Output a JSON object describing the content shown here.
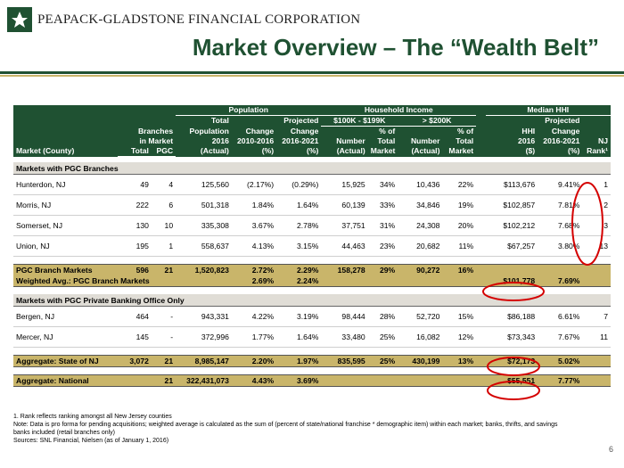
{
  "header": {
    "company": "PEAPACK-GLADSTONE FINANCIAL CORPORATION",
    "title": "Market Overview – The “Wealth Belt”"
  },
  "table": {
    "group_headers": {
      "population": "Population",
      "household_income": "Household Income",
      "median_hhi": "Median HHI"
    },
    "income_bands": {
      "band1": "$100K - $199K",
      "band2": "> $200K"
    },
    "col_heads": {
      "market": "Market (County)",
      "branches1": "Branches",
      "branches2": "in Market",
      "total": "Total",
      "pgc": "PGC",
      "pop_total1": "Total",
      "pop_total2": "Population",
      "pop_total3": "2016",
      "pop_total4": "(Actual)",
      "chg1": "Change",
      "chg2": "2010-2016",
      "chg3": "(%)",
      "proj1": "Projected",
      "proj2": "Change",
      "proj3": "2016-2021",
      "proj4": "(%)",
      "num1": "Number",
      "num2": "(Actual)",
      "pct1": "% of",
      "pct2": "Total",
      "pct3": "Market",
      "num3": "Number",
      "num4": "(Actual)",
      "pct4": "% of",
      "pct5": "Total",
      "pct6": "Market",
      "hhi1": "HHI",
      "hhi2": "2016",
      "hhi3": "($)",
      "hproj1": "Projected",
      "hproj2": "Change",
      "hproj3": "2016-2021",
      "hproj4": "(%)",
      "nj1": "NJ",
      "nj2": "Rank¹"
    },
    "section1": "Markets with PGC Branches",
    "rows1": [
      [
        "Hunterdon, NJ",
        "49",
        "4",
        "125,560",
        "(2.17%)",
        "(0.29%)",
        "15,925",
        "34%",
        "10,436",
        "22%",
        "$113,676",
        "9.41%",
        "1"
      ],
      [
        "Morris, NJ",
        "222",
        "6",
        "501,318",
        "1.84%",
        "1.64%",
        "60,139",
        "33%",
        "34,846",
        "19%",
        "$102,857",
        "7.81%",
        "2"
      ],
      [
        "Somerset, NJ",
        "130",
        "10",
        "335,308",
        "3.67%",
        "2.78%",
        "37,751",
        "31%",
        "24,308",
        "20%",
        "$102,212",
        "7.68%",
        "3"
      ],
      [
        "Union, NJ",
        "195",
        "1",
        "558,637",
        "4.13%",
        "3.15%",
        "44,463",
        "23%",
        "20,682",
        "11%",
        "$67,257",
        "3.80%",
        "13"
      ]
    ],
    "pgc_branch": [
      "PGC Branch Markets",
      "596",
      "21",
      "1,520,823",
      "2.72%",
      "2.29%",
      "158,278",
      "29%",
      "90,272",
      "16%",
      "",
      "",
      ""
    ],
    "weighted": {
      "label": "Weighted Avg.: PGC Branch Markets",
      "chg": "2.69%",
      "proj": "2.24%",
      "hhi": "$101,778",
      "hproj": "7.69%"
    },
    "section2": "Markets with PGC Private Banking Office Only",
    "rows2": [
      [
        "Bergen, NJ",
        "464",
        "-",
        "943,331",
        "4.22%",
        "3.19%",
        "98,444",
        "28%",
        "52,720",
        "15%",
        "$86,188",
        "6.61%",
        "7"
      ],
      [
        "Mercer, NJ",
        "145",
        "-",
        "372,996",
        "1.77%",
        "1.64%",
        "33,480",
        "25%",
        "16,082",
        "12%",
        "$73,343",
        "7.67%",
        "11"
      ]
    ],
    "state": [
      "Aggregate: State of NJ",
      "3,072",
      "21",
      "8,985,147",
      "2.20%",
      "1.97%",
      "835,595",
      "25%",
      "430,199",
      "13%",
      "$72,173",
      "5.02%",
      ""
    ],
    "national": [
      "Aggregate: National",
      "",
      "21",
      "322,431,073",
      "4.43%",
      "3.69%",
      "",
      "",
      "",
      "",
      "$55,551",
      "7.77%",
      ""
    ]
  },
  "notes": {
    "n1": "1. Rank reflects ranking amongst all New Jersey counties",
    "n2": "Note: Data is pro forma for pending acquisitions; weighted average is calculated as the sum of (percent of state/national franchise * demographic item) within each market; banks, thrifts, and savings banks included (retail branches only)",
    "n3": "Sources: SNL Financial, Nielsen (as of January 1, 2016)"
  },
  "page_number": "6",
  "colors": {
    "brand_green": "#1f5132",
    "gold": "#c9b56a",
    "circle_red": "#d40000"
  }
}
